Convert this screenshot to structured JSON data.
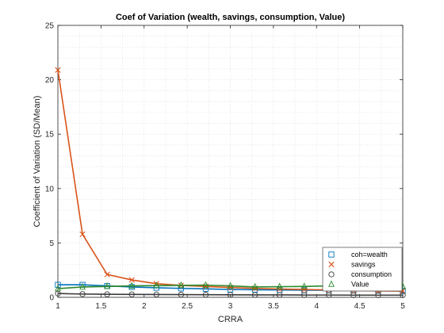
{
  "chart_data": {
    "type": "line",
    "title": "Coef of Variation (wealth, savings, consumption, Value)",
    "xlabel": "CRRA",
    "ylabel": "Coefficient of Variation (SD/Mean)",
    "xlim": [
      1,
      5
    ],
    "ylim": [
      0,
      25
    ],
    "xticks": [
      "1",
      "1.5",
      "2",
      "2.5",
      "3",
      "3.5",
      "4",
      "4.5",
      "5"
    ],
    "yticks": [
      "0",
      "5",
      "10",
      "15",
      "20",
      "25"
    ],
    "grid": true,
    "legend_position": "bottom-right",
    "x": [
      1.0,
      1.2857,
      1.5714,
      1.8571,
      2.1429,
      2.4286,
      2.7143,
      3.0,
      3.2857,
      3.5714,
      3.8571,
      4.1429,
      4.4286,
      4.7143,
      5.0
    ],
    "series": [
      {
        "name": "coh=wealth",
        "color": "#0072BD",
        "marker": "square",
        "values": [
          1.15,
          1.15,
          1.05,
          0.95,
          0.88,
          0.82,
          0.78,
          0.72,
          0.7,
          0.68,
          0.66,
          0.65,
          0.64,
          0.62,
          0.6
        ]
      },
      {
        "name": "savings",
        "color": "#D95319",
        "marker": "x",
        "values": [
          20.9,
          5.8,
          2.1,
          1.6,
          1.25,
          1.1,
          1.0,
          0.9,
          0.82,
          0.76,
          0.72,
          0.68,
          0.64,
          0.6,
          0.58
        ]
      },
      {
        "name": "consumption",
        "color": "#3a3a3a",
        "marker": "circle",
        "values": [
          0.35,
          0.3,
          0.28,
          0.27,
          0.26,
          0.25,
          0.24,
          0.23,
          0.22,
          0.22,
          0.21,
          0.21,
          0.2,
          0.2,
          0.2
        ]
      },
      {
        "name": "Value",
        "color": "#2E8B2E",
        "marker": "triangle",
        "values": [
          0.8,
          0.95,
          1.0,
          1.05,
          1.08,
          1.1,
          1.12,
          1.05,
          0.95,
          0.98,
          1.0,
          1.05,
          1.0,
          1.02,
          1.0
        ]
      }
    ]
  }
}
